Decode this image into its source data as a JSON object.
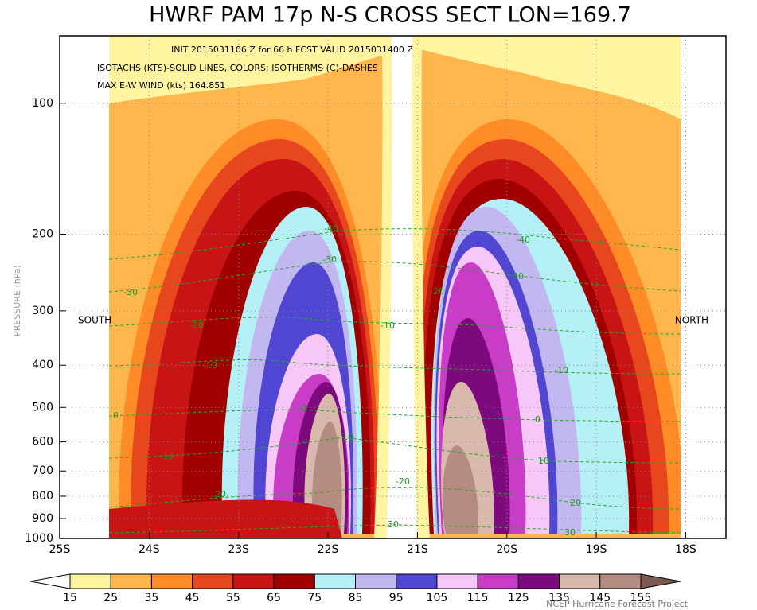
{
  "chart_data": {
    "type": "contour",
    "title": "HWRF PAM 17p N-S CROSS SECT LON=169.7",
    "annotations": [
      "INIT 2015031106 Z for 66 h FCST VALID 2015031400 Z",
      "ISOTACHS (KTS)-SOLID LINES, COLORS; ISOTHERMS (C)-DASHES",
      "MAX E-W WIND (kts) 164.851"
    ],
    "south_label": "SOUTH",
    "north_label": "NORTH",
    "ylabel": "PRESSURE (hPa)",
    "credit": "NCEP Hurricane Forecast Project",
    "log_y": true,
    "grid": true,
    "xlim": [
      -25,
      -17.55
    ],
    "xticks": [
      {
        "value": -25,
        "label": "25S"
      },
      {
        "value": -24,
        "label": "24S"
      },
      {
        "value": -23,
        "label": "23S"
      },
      {
        "value": -22,
        "label": "22S"
      },
      {
        "value": -21,
        "label": "21S"
      },
      {
        "value": -20,
        "label": "20S"
      },
      {
        "value": -19,
        "label": "19S"
      },
      {
        "value": -18,
        "label": "18S"
      }
    ],
    "ylim": [
      1000,
      70
    ],
    "yticks": [
      100,
      200,
      300,
      400,
      500,
      600,
      700,
      800,
      900,
      1000
    ],
    "isotherm_labels": [
      -40,
      -30,
      -30,
      -20,
      -10,
      0,
      10,
      20,
      -10,
      0,
      10,
      -20,
      -40,
      -30,
      -10,
      0,
      10,
      20,
      -20,
      30,
      30
    ],
    "colorbar": {
      "levels": [
        15,
        25,
        35,
        45,
        55,
        65,
        75,
        85,
        95,
        105,
        115,
        125,
        135,
        145,
        155
      ],
      "colors": [
        "#ffffff",
        "#fff5a0",
        "#ffb74d",
        "#ff8c26",
        "#e8461c",
        "#c81414",
        "#a00000",
        "#b4f0f5",
        "#c3b7f2",
        "#5046d2",
        "#f7c8f7",
        "#c83cc8",
        "#7d0a7d",
        "#d9b8ad",
        "#b48c82",
        "#7d5a50"
      ]
    }
  }
}
